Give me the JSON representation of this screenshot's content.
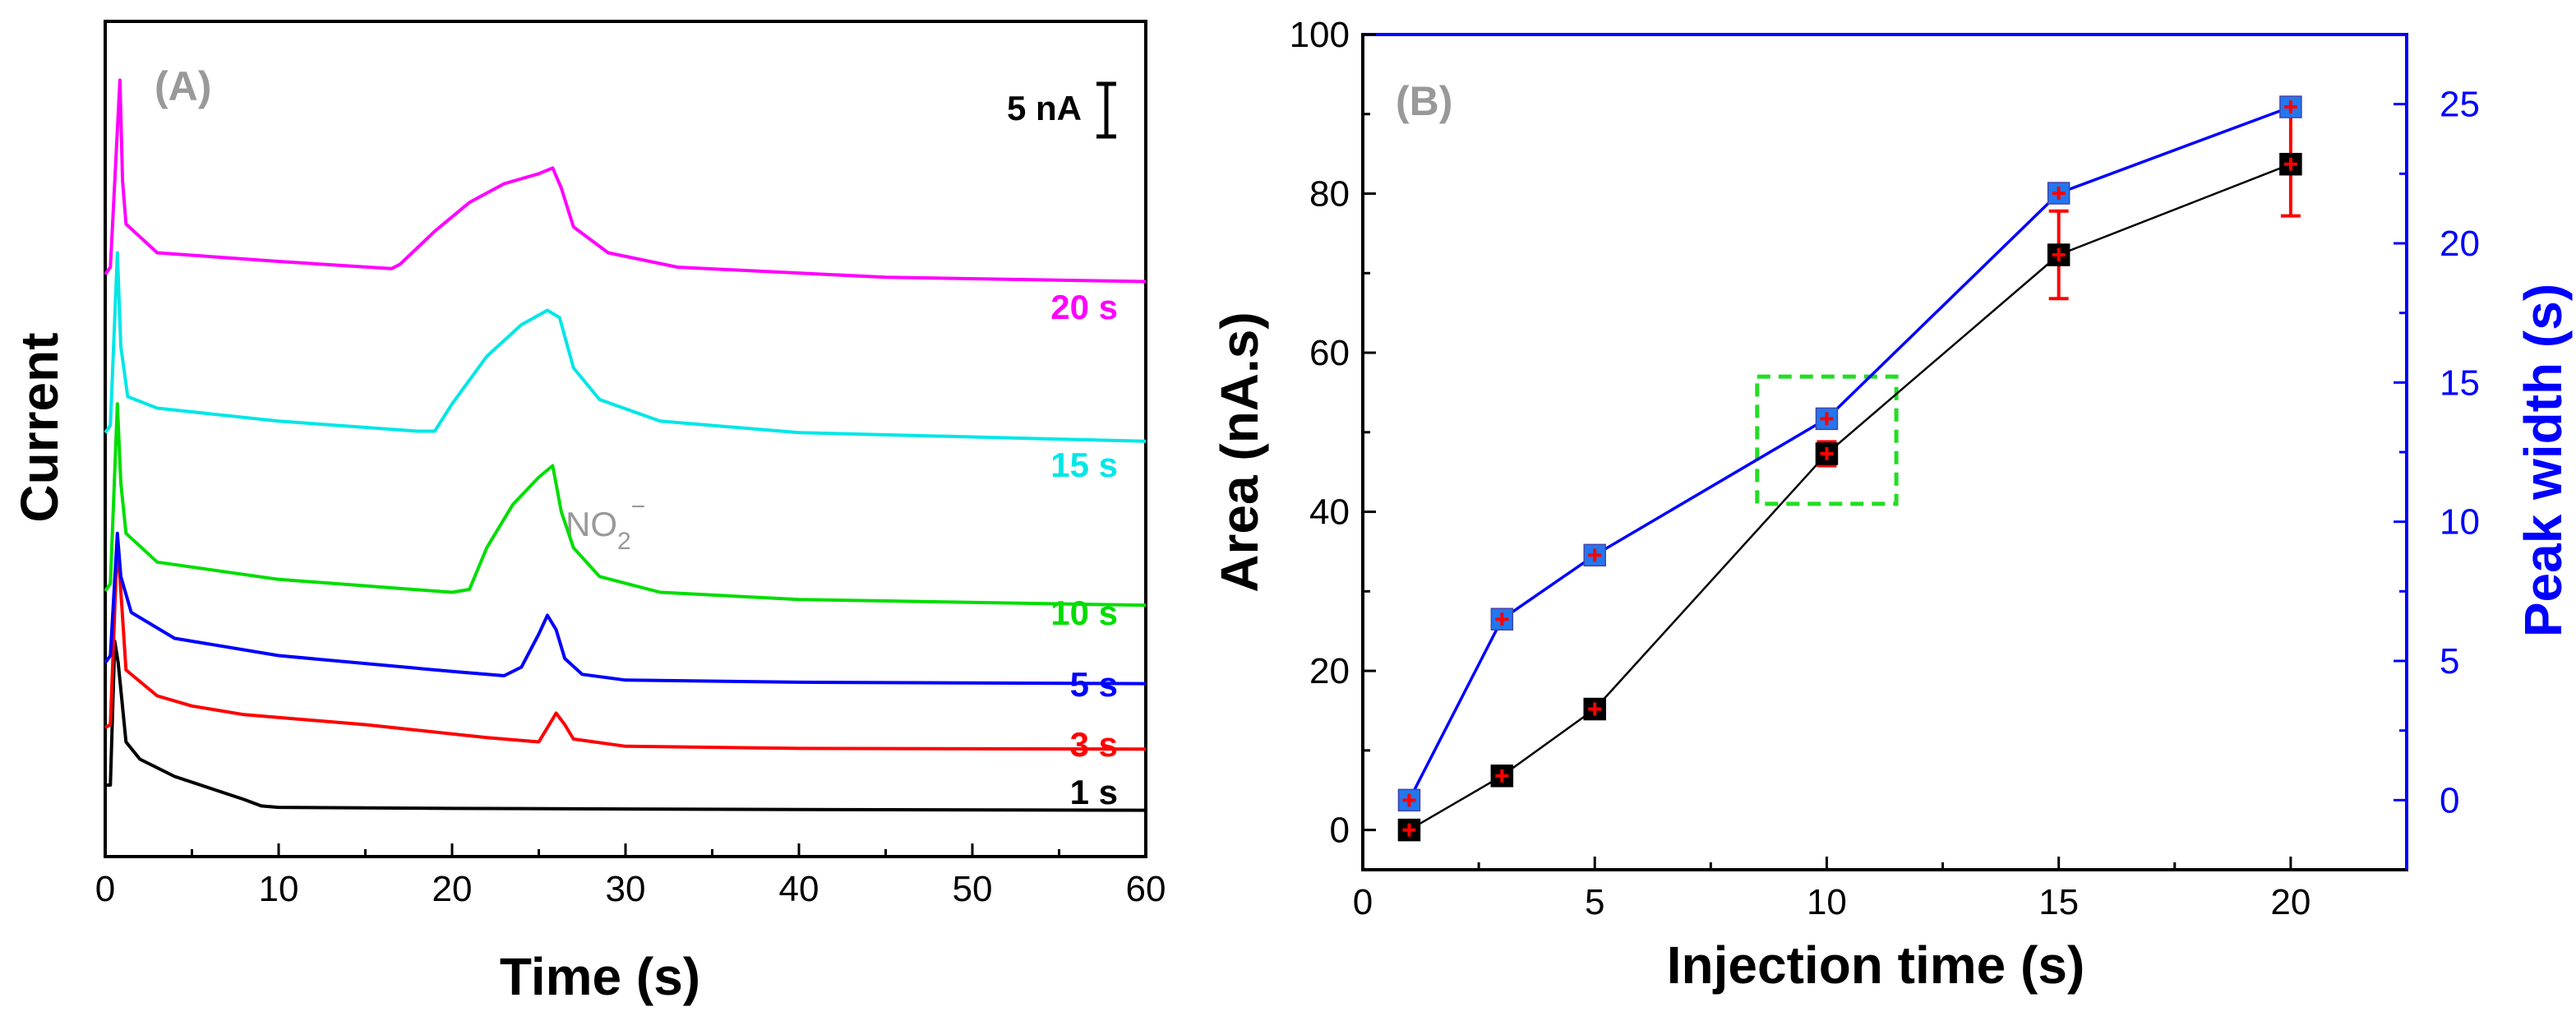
{
  "chart_data": [
    {
      "type": "line",
      "panel_label": "(A)",
      "xlabel": "Time (s)",
      "ylabel": "Current",
      "xlim": [
        0,
        60
      ],
      "x_ticks": [
        "0",
        "10",
        "20",
        "30",
        "40",
        "50",
        "60"
      ],
      "scale_bar_label": "5 nA",
      "annotation": {
        "text": "NO",
        "subscript": "2",
        "superscript": "−"
      },
      "series": [
        {
          "name": "1 s",
          "color": "#000000",
          "baseline_nA": 0.0,
          "points": [
            [
              0,
              2.0
            ],
            [
              0.3,
              2.0
            ],
            [
              0.55,
              12.0
            ],
            [
              0.75,
              10.5
            ],
            [
              1.2,
              5.0
            ],
            [
              2,
              3.8
            ],
            [
              4,
              2.6
            ],
            [
              6,
              1.8
            ],
            [
              8,
              1.0
            ],
            [
              9,
              0.55
            ],
            [
              10,
              0.45
            ],
            [
              20,
              0.38
            ],
            [
              40,
              0.3
            ],
            [
              60,
              0.25
            ]
          ]
        },
        {
          "name": "3 s",
          "color": "#ff0000",
          "baseline_nA": 4.4,
          "points": [
            [
              0,
              6.0
            ],
            [
              0.3,
              6.2
            ],
            [
              0.7,
              19.0
            ],
            [
              0.9,
              15.5
            ],
            [
              1.2,
              10.0
            ],
            [
              3,
              8.2
            ],
            [
              5,
              7.5
            ],
            [
              8,
              6.9
            ],
            [
              15,
              6.2
            ],
            [
              22,
              5.3
            ],
            [
              25,
              5.0
            ],
            [
              25.6,
              6.2
            ],
            [
              26,
              7.0
            ],
            [
              26.5,
              6.2
            ],
            [
              27,
              5.2
            ],
            [
              30,
              4.7
            ],
            [
              40,
              4.55
            ],
            [
              60,
              4.5
            ]
          ]
        },
        {
          "name": "5 s",
          "color": "#0000ff",
          "baseline_nA": 9.0,
          "points": [
            [
              0,
              10.5
            ],
            [
              0.3,
              11.0
            ],
            [
              0.7,
              19.5
            ],
            [
              0.9,
              16.5
            ],
            [
              1.5,
              14.0
            ],
            [
              4,
              12.2
            ],
            [
              10,
              11.0
            ],
            [
              20,
              9.9
            ],
            [
              23,
              9.6
            ],
            [
              24,
              10.2
            ],
            [
              25,
              12.5
            ],
            [
              25.5,
              13.8
            ],
            [
              26,
              12.8
            ],
            [
              26.5,
              10.8
            ],
            [
              27.5,
              9.7
            ],
            [
              30,
              9.3
            ],
            [
              40,
              9.15
            ],
            [
              60,
              9.05
            ]
          ]
        },
        {
          "name": "10 s",
          "color": "#00dd00",
          "baseline_nA": 14.5,
          "points": [
            [
              0,
              15.5
            ],
            [
              0.3,
              16.0
            ],
            [
              0.7,
              28.5
            ],
            [
              0.9,
              23.0
            ],
            [
              1.2,
              19.5
            ],
            [
              3,
              17.5
            ],
            [
              10,
              16.3
            ],
            [
              20,
              15.4
            ],
            [
              21,
              15.6
            ],
            [
              22,
              18.5
            ],
            [
              23.5,
              21.5
            ],
            [
              25,
              23.4
            ],
            [
              25.8,
              24.2
            ],
            [
              26.3,
              21.0
            ],
            [
              27,
              18.5
            ],
            [
              28.5,
              16.5
            ],
            [
              32,
              15.4
            ],
            [
              40,
              14.9
            ],
            [
              60,
              14.5
            ]
          ]
        },
        {
          "name": "15 s",
          "color": "#00e6e6",
          "baseline_nA": 25.8,
          "points": [
            [
              0,
              26.5
            ],
            [
              0.3,
              27.0
            ],
            [
              0.7,
              39.0
            ],
            [
              0.9,
              32.5
            ],
            [
              1.3,
              29.0
            ],
            [
              3,
              28.2
            ],
            [
              10,
              27.3
            ],
            [
              18,
              26.6
            ],
            [
              19,
              26.6
            ],
            [
              20,
              28.5
            ],
            [
              22,
              31.8
            ],
            [
              24,
              34.0
            ],
            [
              25.5,
              35.0
            ],
            [
              26.2,
              34.5
            ],
            [
              27,
              31.0
            ],
            [
              28.5,
              28.8
            ],
            [
              32,
              27.3
            ],
            [
              40,
              26.5
            ],
            [
              60,
              25.9
            ]
          ]
        },
        {
          "name": "20 s",
          "color": "#ff00ff",
          "baseline_nA": 37.0,
          "points": [
            [
              0,
              37.5
            ],
            [
              0.3,
              38.0
            ],
            [
              0.85,
              51.0
            ],
            [
              1.0,
              44.0
            ],
            [
              1.2,
              41.0
            ],
            [
              3,
              39.0
            ],
            [
              10,
              38.4
            ],
            [
              16.5,
              37.9
            ],
            [
              17,
              38.2
            ],
            [
              19,
              40.5
            ],
            [
              21,
              42.5
            ],
            [
              23,
              43.8
            ],
            [
              25,
              44.5
            ],
            [
              25.8,
              44.9
            ],
            [
              26.3,
              43.5
            ],
            [
              27,
              40.8
            ],
            [
              29,
              39.0
            ],
            [
              33,
              38.0
            ],
            [
              45,
              37.3
            ],
            [
              60,
              37.0
            ]
          ]
        }
      ]
    },
    {
      "type": "scatter",
      "panel_label": "(B)",
      "xlabel": "Injection time (s)",
      "ylabel": "Area (nA.s)",
      "y2label": "Peak width (s)",
      "xlim": [
        0,
        22.5
      ],
      "ylim": [
        -5,
        100
      ],
      "y2lim": [
        -2.5,
        27.5
      ],
      "x_ticks": [
        "0",
        "5",
        "10",
        "15",
        "20"
      ],
      "y_ticks": [
        "0",
        "20",
        "40",
        "60",
        "80",
        "100"
      ],
      "y2_ticks": [
        "0",
        "5",
        "10",
        "15",
        "20",
        "25"
      ],
      "highlight_box": {
        "x_range": [
          8.5,
          11.5
        ],
        "y_range": [
          41,
          57
        ],
        "color": "#22dd22"
      },
      "series": [
        {
          "name": "Area",
          "axis": "left",
          "color": "#000000",
          "marker_color": "#000000",
          "x": [
            1,
            3,
            5,
            10,
            15,
            20
          ],
          "y": [
            0,
            6.8,
            15.2,
            47.3,
            72.3,
            83.7
          ],
          "err": [
            0.5,
            1.2,
            1.0,
            1.5,
            5.5,
            6.5
          ],
          "err_color": "#ff0000"
        },
        {
          "name": "Peak width",
          "axis": "right",
          "color": "#0000ff",
          "marker_color": "#2277ee",
          "x": [
            1,
            3,
            5,
            10,
            15,
            20
          ],
          "y": [
            0,
            6.5,
            8.8,
            13.7,
            21.8,
            24.9
          ],
          "err": [
            0.2,
            0.3,
            0.3,
            0.3,
            0.3,
            0.3
          ],
          "err_color": "#ff0000"
        }
      ]
    }
  ]
}
